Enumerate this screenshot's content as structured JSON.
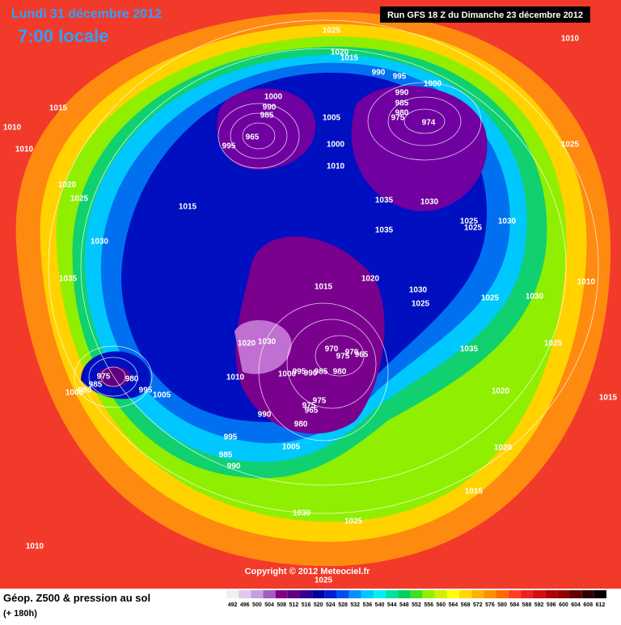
{
  "header": {
    "date": "Lundi 31 décembre 2012",
    "time": "7:00 locale",
    "run": "Run GFS 18 Z du Dimanche 23 décembre 2012"
  },
  "isobar_labels": [
    "1025",
    "1020",
    "1015",
    "1010",
    "990",
    "995",
    "1000",
    "990",
    "985",
    "980",
    "975",
    "974",
    "1000",
    "990",
    "985",
    "965",
    "995",
    "1005",
    "1000",
    "1010",
    "1015",
    "1010",
    "1010",
    "1025",
    "1020",
    "1025",
    "1015",
    "1035",
    "1035",
    "1030",
    "1025",
    "1025",
    "1030",
    "1030",
    "1035",
    "1015",
    "1020",
    "1030",
    "1025",
    "1025",
    "1030",
    "1010",
    "1025",
    "1035",
    "1030",
    "1020",
    "970",
    "975",
    "970",
    "965",
    "1010",
    "1000",
    "995",
    "990",
    "985",
    "980",
    "975",
    "975",
    "965",
    "980",
    "990",
    "1005",
    "995",
    "985",
    "990",
    "1020",
    "1015",
    "1020",
    "1015",
    "1030",
    "1025",
    "1010",
    "1025",
    "975",
    "980",
    "985",
    "990",
    "1000",
    "995",
    "1005"
  ],
  "copyright": "Copyright © 2012 Meteociel.fr",
  "legend": {
    "title": "Géop. Z500 & pression au sol",
    "subtitle": "(+ 180h)",
    "scale": {
      "ticks": [
        492,
        496,
        500,
        504,
        508,
        512,
        516,
        520,
        524,
        528,
        532,
        536,
        540,
        544,
        548,
        552,
        556,
        560,
        564,
        568,
        572,
        576,
        580,
        584,
        588,
        592,
        596,
        600,
        604,
        608,
        612
      ],
      "colors": [
        "#f0f0f0",
        "#e0c8f0",
        "#c8a0e0",
        "#a060c0",
        "#800080",
        "#600080",
        "#300090",
        "#0000a0",
        "#0020d0",
        "#0050f0",
        "#0090ff",
        "#00c8ff",
        "#00f0f0",
        "#00e0a0",
        "#00d060",
        "#40e020",
        "#90f000",
        "#d0f000",
        "#ffff00",
        "#ffd800",
        "#ffb000",
        "#ff9000",
        "#ff6a00",
        "#ff4020",
        "#f02020",
        "#d01010",
        "#b00000",
        "#900000",
        "#600000",
        "#300000",
        "#000000"
      ]
    }
  }
}
